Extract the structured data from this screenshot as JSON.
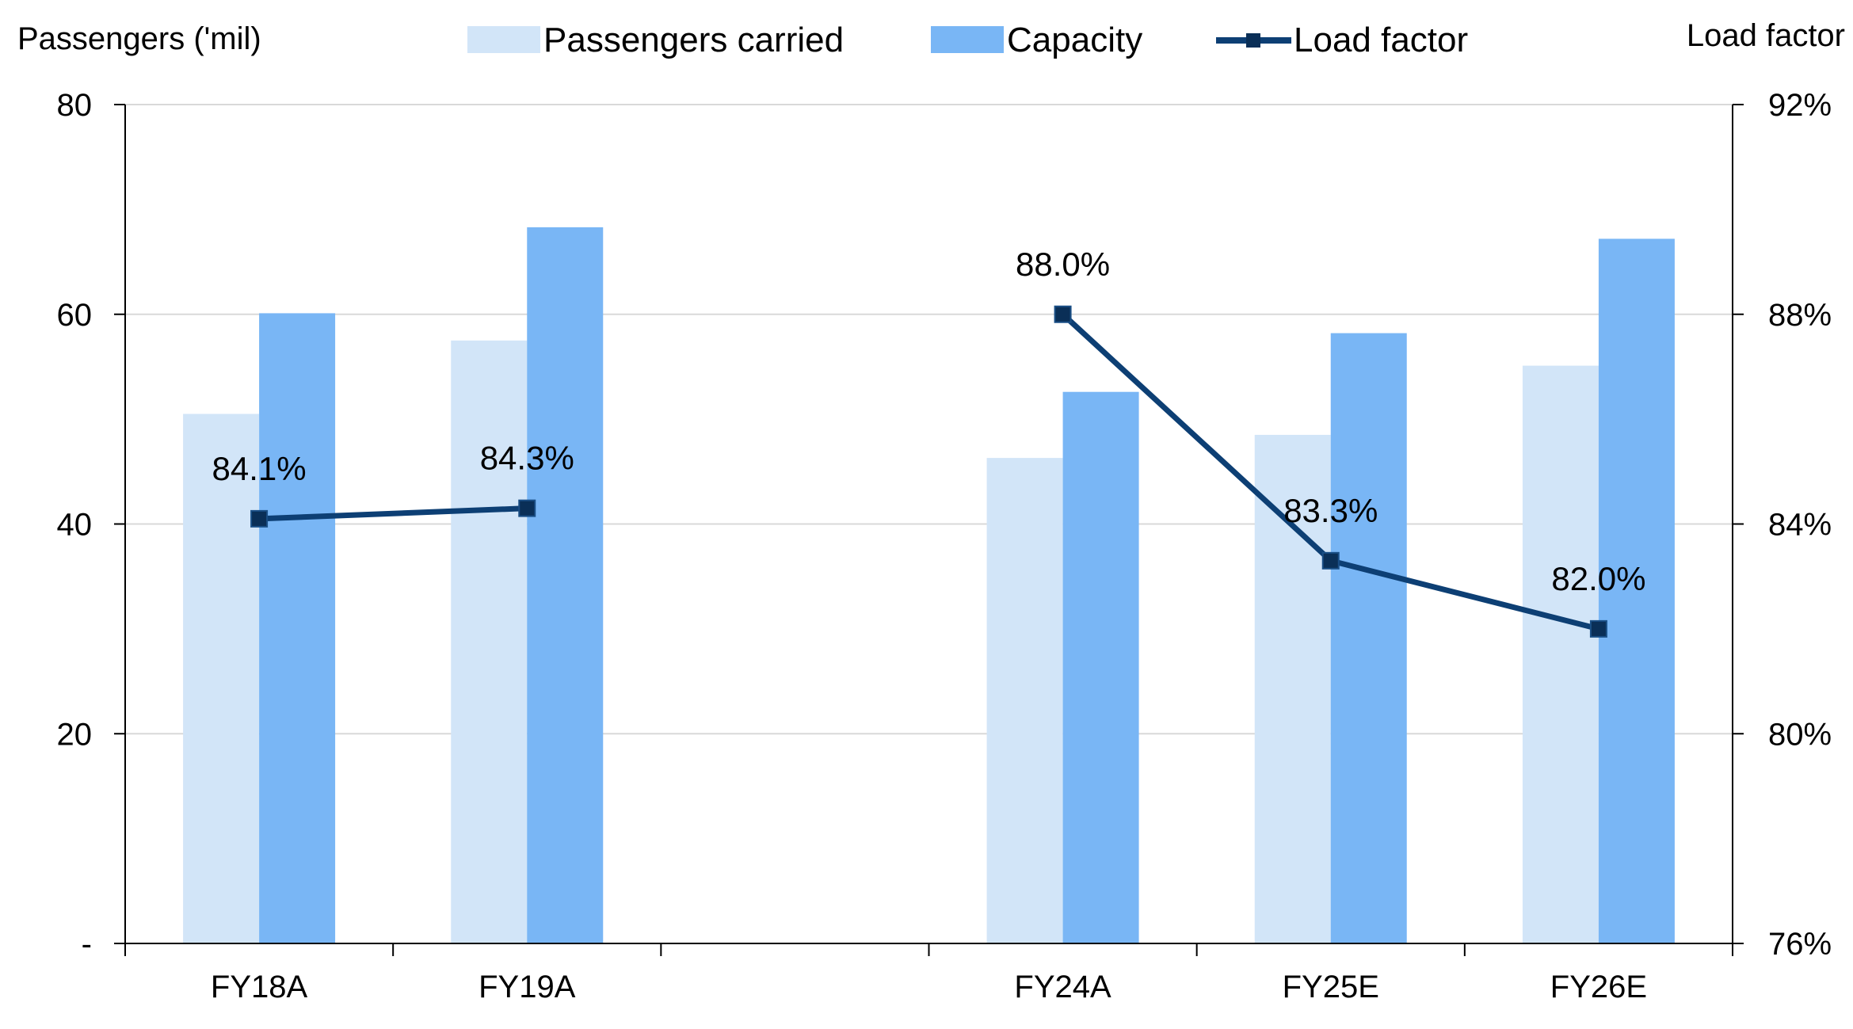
{
  "chart_data": {
    "type": "bar",
    "title": "",
    "categories": [
      "FY18A",
      "FY19A",
      "",
      "FY24A",
      "FY25E",
      "FY26E"
    ],
    "series": [
      {
        "name": "Passengers carried",
        "type": "bar",
        "axis": "left",
        "color": "#d2e5f8",
        "values": [
          50.5,
          57.5,
          null,
          46.3,
          48.5,
          55.1
        ]
      },
      {
        "name": "Capacity",
        "type": "bar",
        "axis": "left",
        "color": "#79b6f5",
        "values": [
          60.1,
          68.3,
          null,
          52.6,
          58.2,
          67.2
        ]
      },
      {
        "name": "Load factor",
        "type": "line",
        "axis": "right",
        "color": "#0d3f74",
        "marker": "square",
        "marker_color": "#0a2f57",
        "values": [
          84.1,
          84.3,
          null,
          88.0,
          83.3,
          82.0
        ],
        "labels": [
          "84.1%",
          "84.3%",
          "",
          "88.0%",
          "83.3%",
          "82.0%"
        ]
      }
    ],
    "y_left": {
      "label": "Passengers ('mil)",
      "ylim": [
        0,
        80
      ],
      "ticks": [
        0,
        20,
        40,
        60,
        80
      ],
      "tick_labels": [
        "-",
        "20",
        "40",
        "60",
        "80"
      ]
    },
    "y_right": {
      "label": "Load factor",
      "ylim": [
        76,
        92
      ],
      "ticks": [
        76,
        80,
        84,
        88,
        92
      ],
      "tick_labels": [
        "76%",
        "80%",
        "84%",
        "88%",
        "92%"
      ]
    },
    "grid": true,
    "legend_position": "top",
    "legend": [
      "Passengers carried",
      "Capacity",
      "Load factor"
    ]
  }
}
